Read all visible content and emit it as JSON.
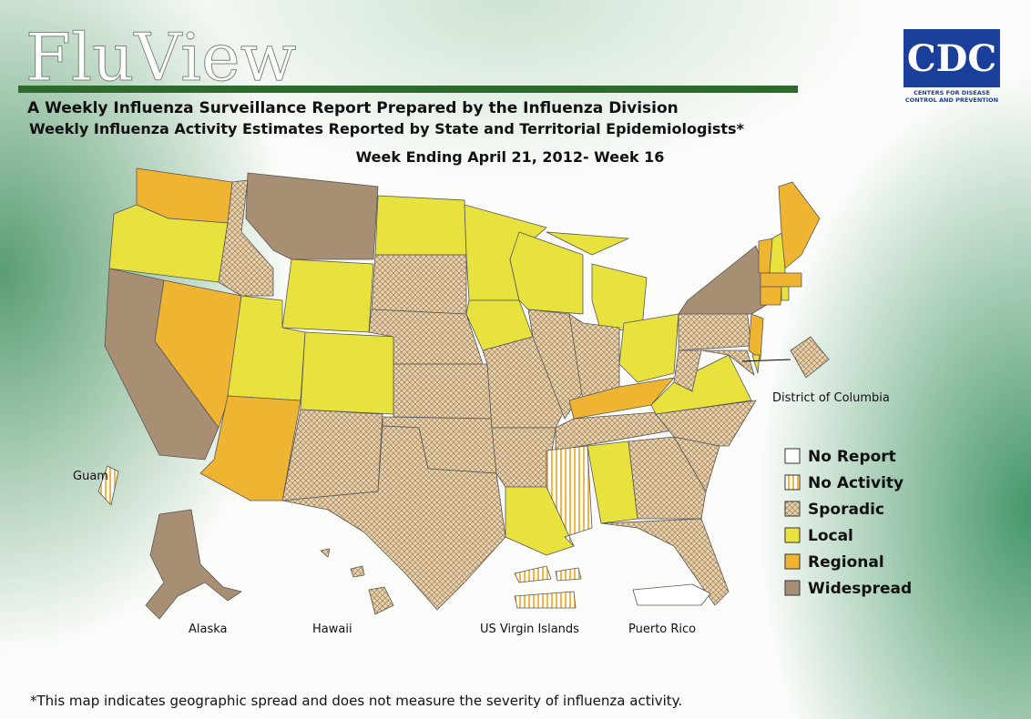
{
  "header": {
    "brand": "FluView",
    "title": "A Weekly Influenza Surveillance Report Prepared by the Influenza Division",
    "subtitle": "Weekly Influenza Activity Estimates Reported by State and Territorial Epidemiologists*",
    "week": "Week Ending April 21, 2012- Week 16"
  },
  "logo": {
    "acronym": "CDC",
    "line1": "CENTERS FOR DISEASE",
    "line2": "CONTROL AND PREVENTION"
  },
  "map": {
    "labels": [
      "District of Columbia",
      "Guam",
      "Alaska",
      "Hawaii",
      "US Virgin Islands",
      "Puerto Rico"
    ]
  },
  "legend": [
    {
      "label": "No Report",
      "color": "#ffffff"
    },
    {
      "label": "No Activity",
      "color": "#f4b547"
    },
    {
      "label": "Sporadic",
      "color": "#e9d3ad"
    },
    {
      "label": "Local",
      "color": "#e8e23e"
    },
    {
      "label": "Regional",
      "color": "#f0b433"
    },
    {
      "label": "Widespread",
      "color": "#a88f74"
    }
  ],
  "footnote": "*This map indicates geographic spread and does not measure the severity of influenza activity."
}
